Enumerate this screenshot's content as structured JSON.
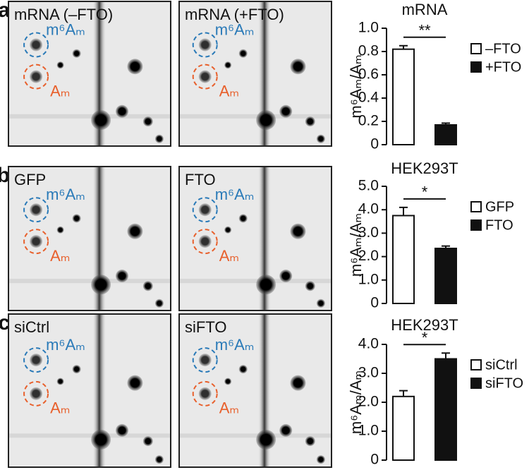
{
  "panels": [
    {
      "letter": "a",
      "images": [
        {
          "label": "mRNA (–FTO)",
          "spot_labels": [
            "m⁶Aₘ",
            "Aₘ"
          ]
        },
        {
          "label": "mRNA (+FTO)",
          "spot_labels": [
            "m⁶Aₘ",
            "Aₘ"
          ]
        }
      ]
    },
    {
      "letter": "b",
      "images": [
        {
          "label": "GFP",
          "spot_labels": [
            "m⁶Aₘ",
            "Aₘ"
          ]
        },
        {
          "label": "FTO",
          "spot_labels": [
            "m⁶Aₘ",
            "Aₘ"
          ]
        }
      ]
    },
    {
      "letter": "c",
      "images": [
        {
          "label": "siCtrl",
          "spot_labels": [
            "m⁶Aₘ",
            "Aₘ"
          ]
        },
        {
          "label": "siFTO",
          "spot_labels": [
            "m⁶Aₘ",
            "Aₘ"
          ]
        }
      ]
    }
  ],
  "chart_data": [
    {
      "type": "bar",
      "title": "mRNA",
      "ylabel": "m⁶Aₘ/Aₘ",
      "categories": [
        "–FTO",
        "+FTO"
      ],
      "values": [
        0.82,
        0.17
      ],
      "errors": [
        0.03,
        0.015
      ],
      "colors": [
        "#ffffff",
        "#111111"
      ],
      "significance": "**",
      "ylim": [
        0,
        1
      ],
      "yticks": [
        0,
        0.2,
        0.4,
        0.6,
        0.8,
        {
          "value": 1,
          "label": "1.0"
        }
      ]
    },
    {
      "type": "bar",
      "title": "HEK293T",
      "ylabel": "m⁶Aₘ/Aₘ",
      "categories": [
        "GFP",
        "FTO"
      ],
      "values": [
        3.75,
        2.35
      ],
      "errors": [
        0.35,
        0.1
      ],
      "colors": [
        "#ffffff",
        "#111111"
      ],
      "significance": "*",
      "ylim": [
        0,
        5
      ],
      "yticks": [
        0,
        {
          "value": 1,
          "label": "1.0"
        },
        {
          "value": 2,
          "label": "2.0"
        },
        {
          "value": 3,
          "label": "3.0"
        },
        {
          "value": 4,
          "label": "4.0"
        },
        {
          "value": 5,
          "label": "5.0"
        }
      ]
    },
    {
      "type": "bar",
      "title": "HEK293T",
      "ylabel": "m⁶Aₘ/Aₘ",
      "categories": [
        "siCtrl",
        "siFTO"
      ],
      "values": [
        2.2,
        3.5
      ],
      "errors": [
        0.2,
        0.2
      ],
      "colors": [
        "#ffffff",
        "#111111"
      ],
      "significance": "*",
      "ylim": [
        0,
        4
      ],
      "yticks": [
        0,
        {
          "value": 1,
          "label": "1.0"
        },
        {
          "value": 2,
          "label": "2.0"
        },
        {
          "value": 3,
          "label": "3.0"
        },
        {
          "value": 4,
          "label": "4.0"
        }
      ]
    }
  ]
}
